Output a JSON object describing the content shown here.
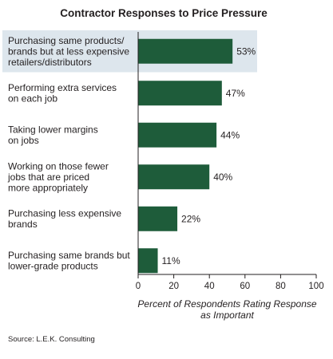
{
  "chart_data": {
    "type": "bar",
    "orientation": "horizontal",
    "title": "Contractor Responses to Price Pressure",
    "categories": [
      [
        "Purchasing same products/",
        "brands but at less expensive",
        "retailers/distributors"
      ],
      [
        "Performing extra services",
        "on each job"
      ],
      [
        "Taking lower margins",
        "on jobs"
      ],
      [
        "Working on those fewer",
        "jobs that are priced",
        "more appropriately"
      ],
      [
        "Purchasing less expensive",
        "brands"
      ],
      [
        "Purchasing same brands but",
        "lower-grade products"
      ]
    ],
    "values": [
      53,
      47,
      44,
      40,
      22,
      11
    ],
    "value_labels": [
      "53%",
      "47%",
      "44%",
      "40%",
      "22%",
      "11%"
    ],
    "xlim": [
      0,
      100
    ],
    "xticks": [
      0,
      20,
      40,
      60,
      80,
      100
    ],
    "xlabel": [
      "Percent of Respondents Rating Response",
      "as Important"
    ],
    "highlight_index": 0,
    "grid": false
  },
  "source": "Source: L.E.K. Consulting",
  "colors": {
    "bar": "#1e5c3a",
    "highlight": "#dde6ed",
    "text": "#231f20",
    "axis": "#231f20"
  }
}
